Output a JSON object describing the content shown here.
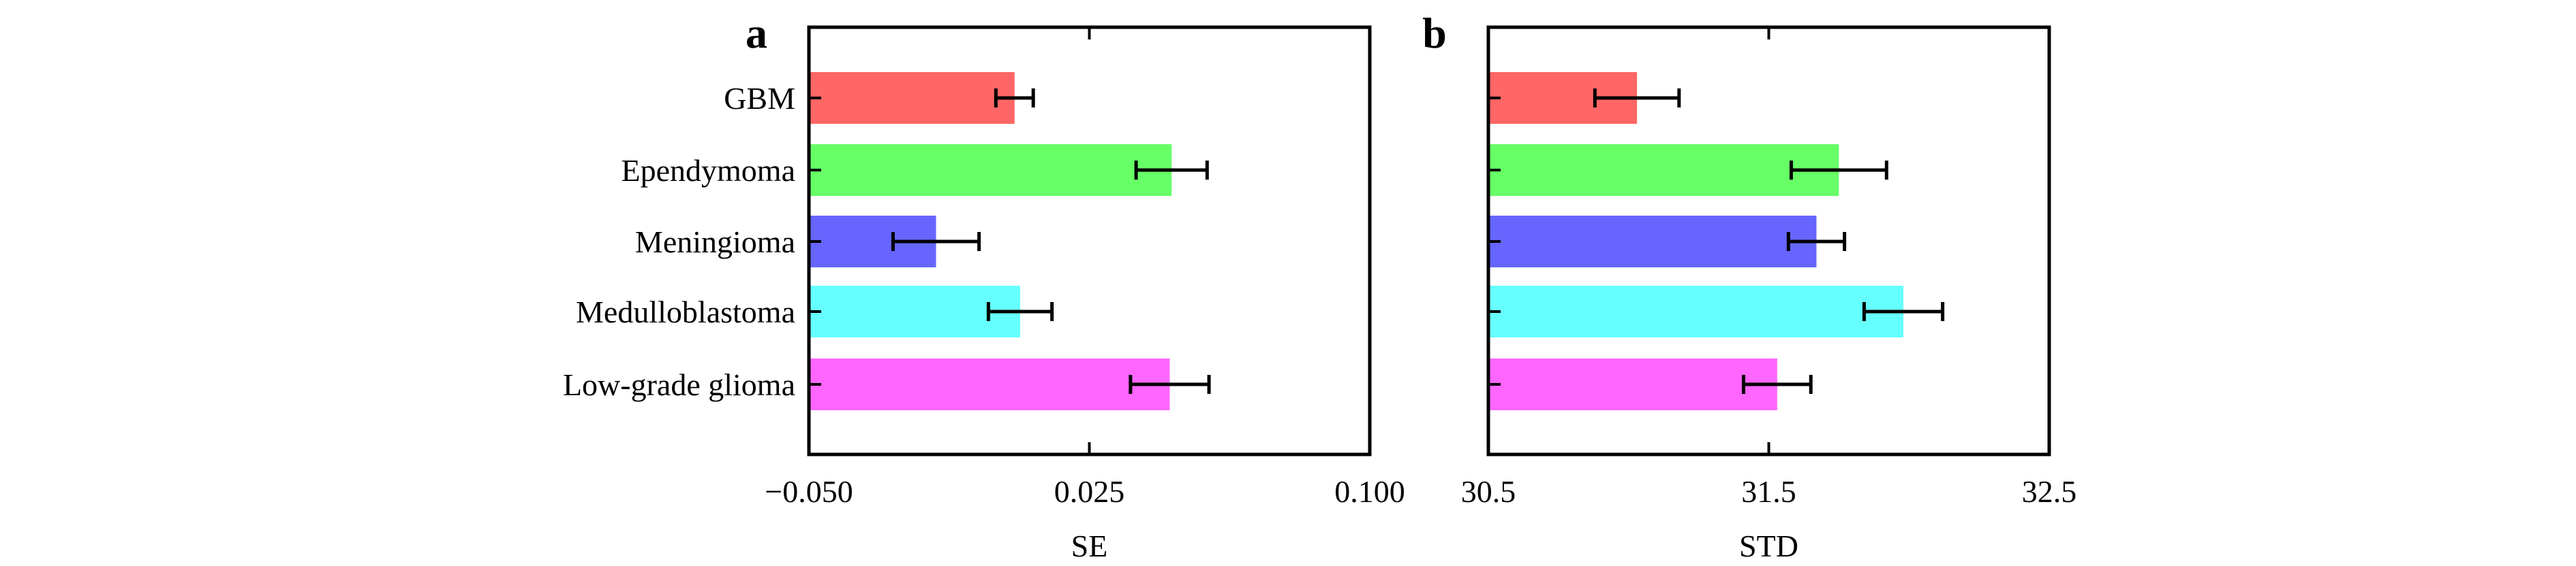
{
  "chart_data": [
    {
      "type": "bar",
      "orientation": "horizontal",
      "panel_label": "a",
      "categories": [
        "GBM",
        "Ependymoma",
        "Meningioma",
        "Medulloblastoma",
        "Low-grade glioma"
      ],
      "values": [
        0.005,
        0.047,
        -0.016,
        0.0065,
        0.0465
      ],
      "error": [
        0.005,
        0.0095,
        0.0115,
        0.0085,
        0.0105
      ],
      "colors": [
        "#ff6666",
        "#66ff66",
        "#6666ff",
        "#66ffff",
        "#ff66ff"
      ],
      "xlabel": "SE",
      "xlim": [
        -0.05,
        0.1
      ],
      "xticks": [
        -0.05,
        0.025,
        0.1
      ],
      "xtick_labels": [
        "−0.050",
        "0.025",
        "0.100"
      ],
      "grid": false
    },
    {
      "type": "bar",
      "orientation": "horizontal",
      "panel_label": "b",
      "categories": [
        "GBM",
        "Ependymoma",
        "Meningioma",
        "Medulloblastoma",
        "Low-grade glioma"
      ],
      "values": [
        31.03,
        31.75,
        31.67,
        31.98,
        31.53
      ],
      "error": [
        0.15,
        0.17,
        0.1,
        0.14,
        0.12
      ],
      "colors": [
        "#ff6666",
        "#66ff66",
        "#6666ff",
        "#66ffff",
        "#ff66ff"
      ],
      "xlabel": "STD",
      "xlim": [
        30.5,
        32.5
      ],
      "xticks": [
        30.5,
        31.5,
        32.5
      ],
      "xtick_labels": [
        "30.5",
        "31.5",
        "32.5"
      ],
      "grid": false
    }
  ]
}
